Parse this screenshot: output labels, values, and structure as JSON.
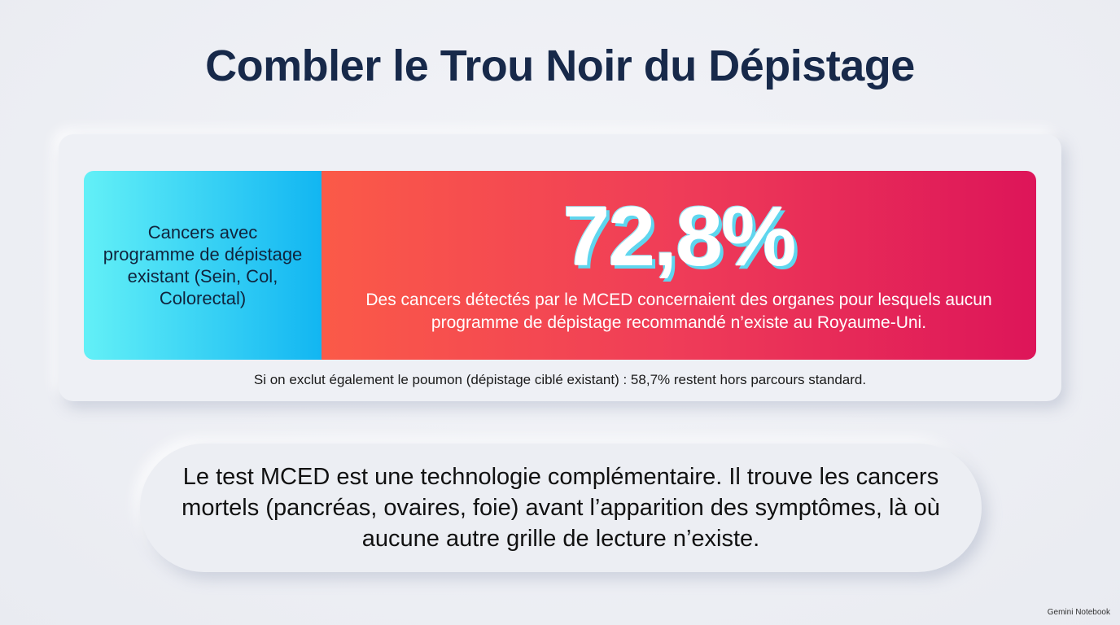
{
  "title": "Combler le Trou Noir du Dépistage",
  "card": {
    "left_label": "Cancers avec programme de dépistage existant (Sein, Col, Colorectal)",
    "stat": "72,8%",
    "stat_description": "Des cancers détectés par le MCED concernaient des organes pour lesquels aucun programme de dépistage recommandé n’existe au Royaume-Uni.",
    "footnote": "Si on exclut également le poumon (dépistage ciblé existant) : 58,7% restent hors parcours standard."
  },
  "conclusion": "Le test MCED est une technologie complémentaire. Il trouve les cancers mortels (pancréas, ovaires, foie) avant l’apparition des symptômes, là où aucune autre grille de lecture n’existe.",
  "watermark": "Gemini Notebook"
}
